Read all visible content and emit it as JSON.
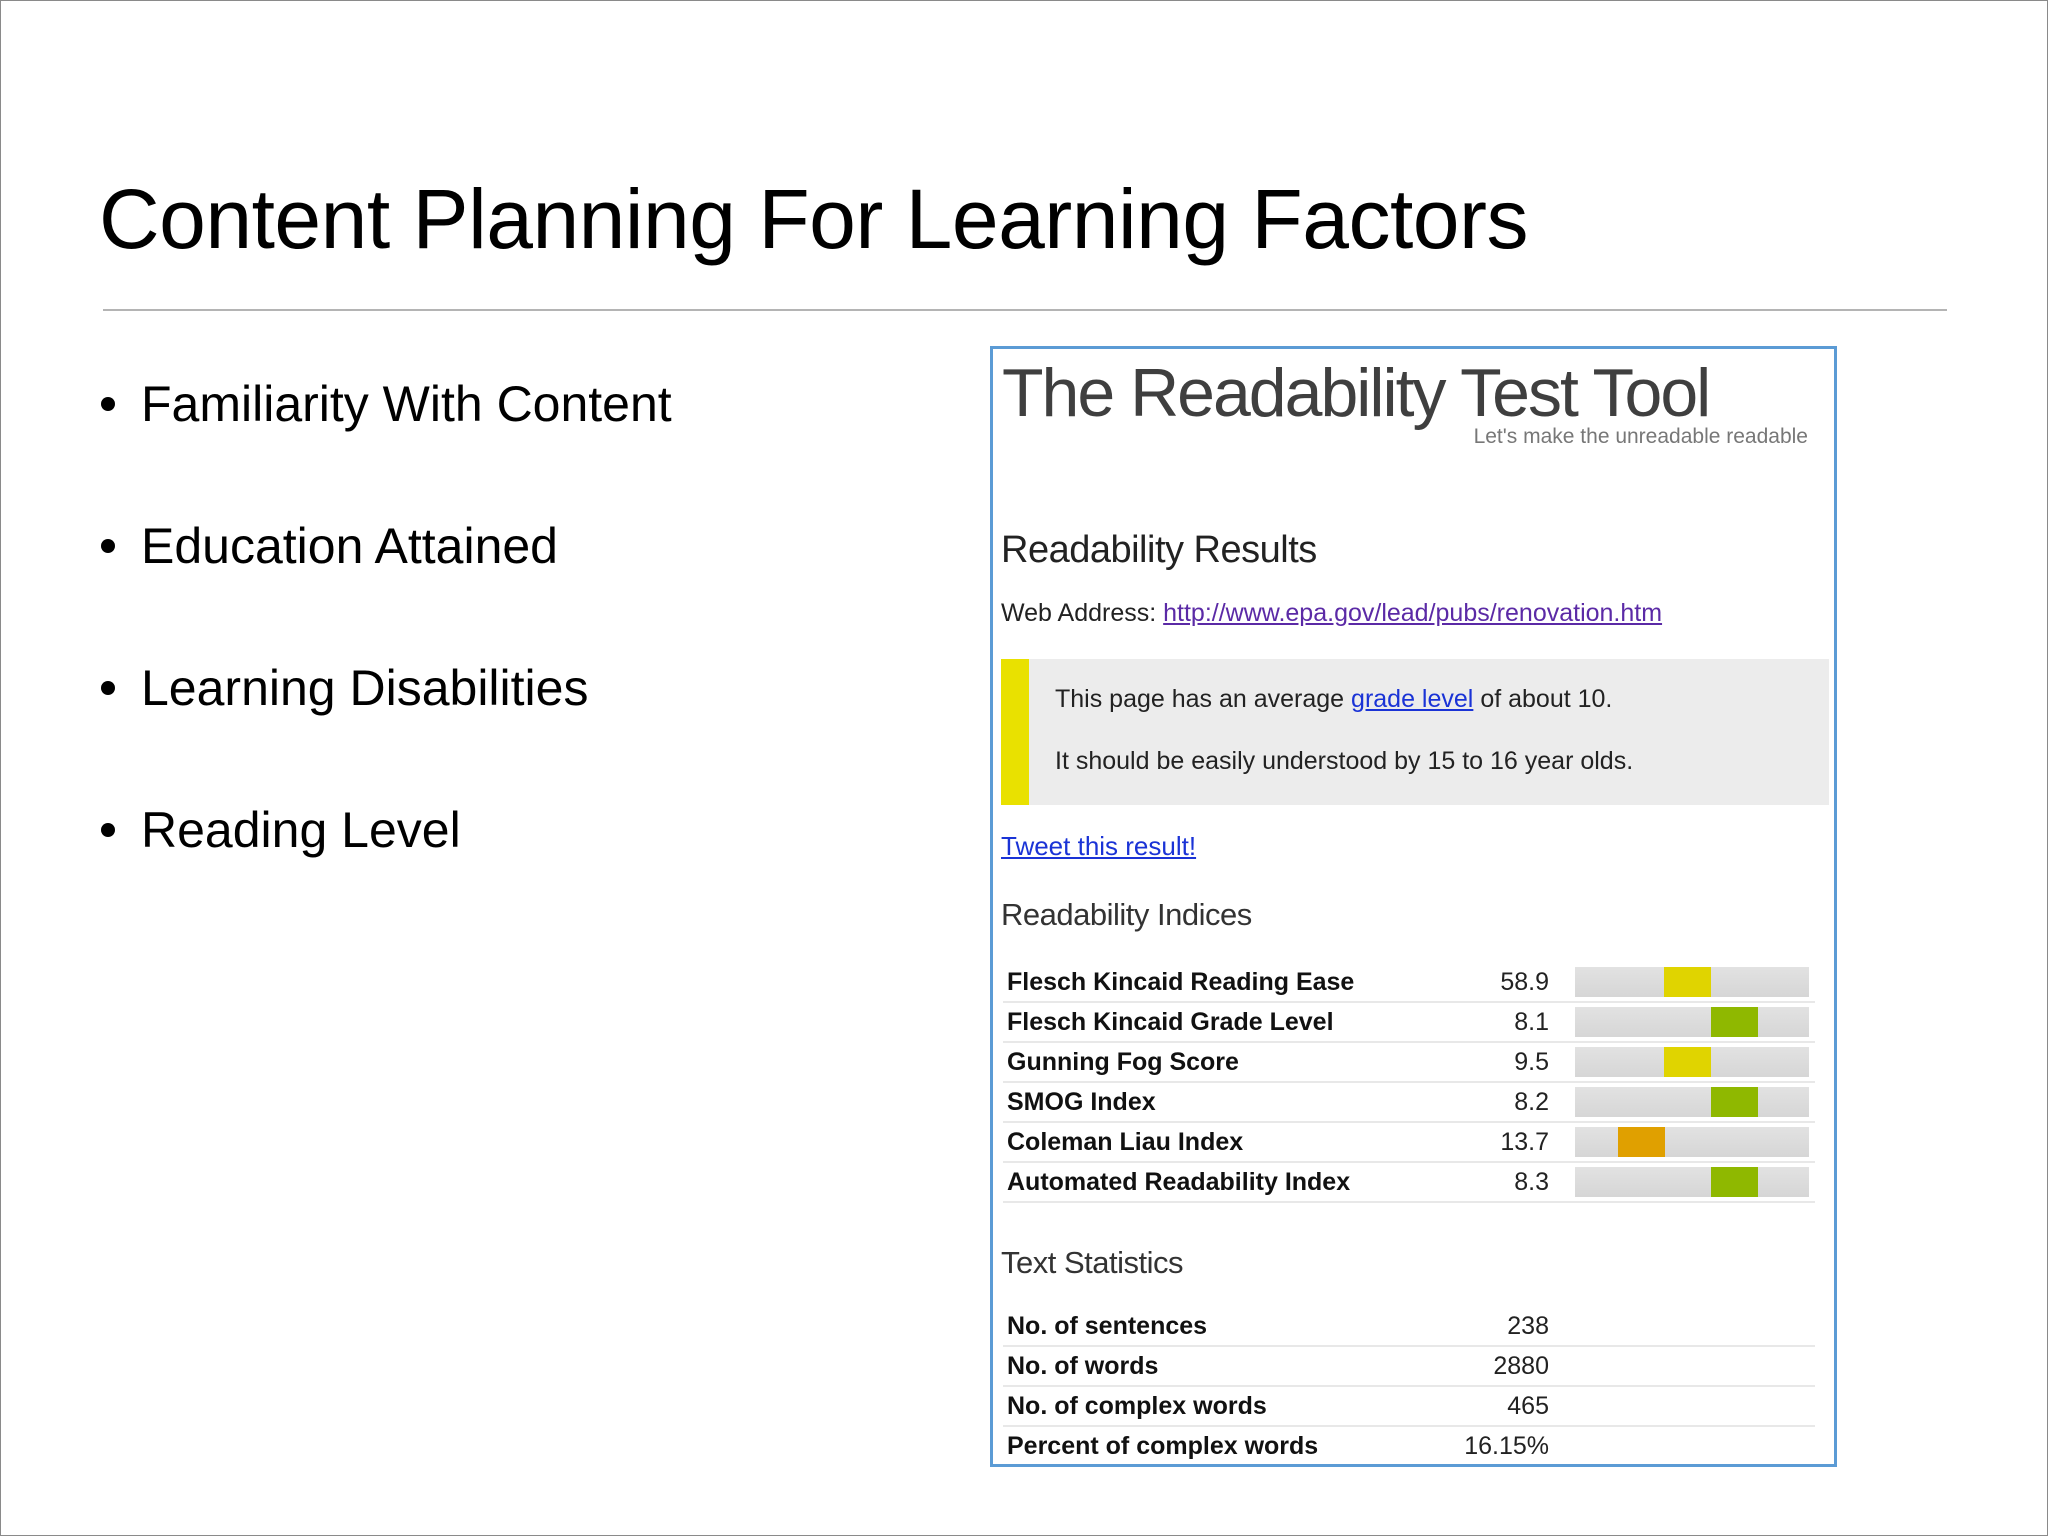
{
  "slide": {
    "title": "Content Planning For Learning Factors",
    "bullets": [
      "Familiarity With Content",
      "Education Attained",
      "Learning Disabilities",
      "Reading Level"
    ]
  },
  "tool": {
    "title": "The Readability Test Tool",
    "tagline": "Let's make the unreadable readable",
    "results_heading": "Readability Results",
    "web_address_label": "Web Address:",
    "web_address_url": "http://www.epa.gov/lead/pubs/renovation.htm",
    "summary": {
      "line1_prefix": "This page has an average",
      "line1_link": "grade level",
      "line1_suffix": "of about 10.",
      "line2": "It should be easily understood by 15 to 16 year olds.",
      "accent_color": "#e9e100"
    },
    "tweet_link": "Tweet this result!",
    "indices_heading": "Readability Indices",
    "indices": [
      {
        "label": "Flesch Kincaid Reading Ease",
        "value": "58.9",
        "meter_position": 0.48,
        "meter_color": "#e0d400"
      },
      {
        "label": "Flesch Kincaid Grade Level",
        "value": "8.1",
        "meter_position": 0.68,
        "meter_color": "#8fb800"
      },
      {
        "label": "Gunning Fog Score",
        "value": "9.5",
        "meter_position": 0.48,
        "meter_color": "#e0d400"
      },
      {
        "label": "SMOG Index",
        "value": "8.2",
        "meter_position": 0.68,
        "meter_color": "#8fb800"
      },
      {
        "label": "Coleman Liau Index",
        "value": "13.7",
        "meter_position": 0.28,
        "meter_color": "#e0a000"
      },
      {
        "label": "Automated Readability Index",
        "value": "8.3",
        "meter_position": 0.68,
        "meter_color": "#8fb800"
      }
    ],
    "stats_heading": "Text Statistics",
    "stats": [
      {
        "label": "No. of sentences",
        "value": "238"
      },
      {
        "label": "No. of words",
        "value": "2880"
      },
      {
        "label": "No. of complex words",
        "value": "465"
      },
      {
        "label": "Percent of complex words",
        "value": "16.15%"
      }
    ]
  }
}
